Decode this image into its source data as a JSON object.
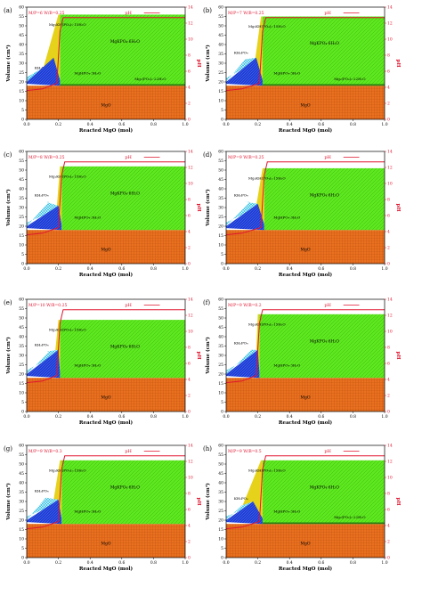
{
  "figure": {
    "panels": [
      {
        "label": "(a)",
        "ratio": "M/P=6 W/B=0.25"
      },
      {
        "label": "(b)",
        "ratio": "M/P=7 W/B=0.25"
      },
      {
        "label": "(c)",
        "ratio": "M/P=8 W/B=0.25"
      },
      {
        "label": "(d)",
        "ratio": "M/P=9 W/B=0.25"
      },
      {
        "label": "(e)",
        "ratio": "M/P=10 W/B=0.25"
      },
      {
        "label": "(f)",
        "ratio": "M/P=9 W/B=0.2"
      },
      {
        "label": "(g)",
        "ratio": "M/P=9 W/B=0.3"
      },
      {
        "label": "(h)",
        "ratio": "M/P=9 W/B=0.5"
      }
    ]
  },
  "chart_data": {
    "type": "area",
    "xlabel": "Reacted MgO (mol)",
    "ylabel": "Volume (cm³)",
    "y2label": "pH",
    "xlim": [
      0.0,
      1.0
    ],
    "ylim": [
      0,
      60
    ],
    "y2lim": [
      0,
      14
    ],
    "xticks": [
      "0.0",
      "0.2",
      "0.4",
      "0.6",
      "0.8",
      "1.0"
    ],
    "yticks": [
      "0",
      "5",
      "10",
      "15",
      "20",
      "25",
      "30",
      "35",
      "40",
      "45",
      "50",
      "55",
      "60"
    ],
    "y2ticks": [
      "0",
      "2",
      "4",
      "6",
      "8",
      "10",
      "12",
      "14"
    ],
    "ph_legend": "pH",
    "phases": {
      "mgo": "MgO",
      "kh2po4": "KH₂PO₄",
      "mghpo4": "MgHPO₄·3H₂O",
      "mgkhpo4": "Mg₂KH(PO₄)₂·15H₂O",
      "mkp": "MgKPO₄·6H₂O",
      "mg3po4": "Mg₃(PO₄)₂·22H₂O"
    },
    "colors": {
      "mgo": "#e8701f",
      "kh2po4": "#47c7e6",
      "mghpo4": "#1f3fd6",
      "mgkhpo4": "#e6d21a",
      "mkp": "#5ee81f",
      "ph": "#e0152f",
      "mgo_grid": "#c2500f"
    },
    "series_common": {
      "mgo_volume": 18,
      "mgo_x": [
        0,
        0.2,
        1.0
      ]
    }
  }
}
